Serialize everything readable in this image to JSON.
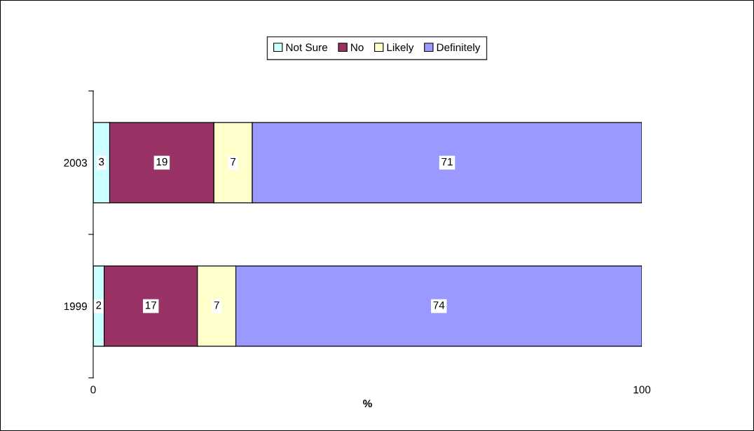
{
  "chart_data": {
    "type": "bar",
    "orientation": "horizontal",
    "stacked": true,
    "categories": [
      "2003",
      "1999"
    ],
    "series": [
      {
        "name": "Not Sure",
        "color": "#ccffff",
        "values": [
          3,
          2
        ]
      },
      {
        "name": "No",
        "color": "#993366",
        "values": [
          19,
          17
        ]
      },
      {
        "name": "Likely",
        "color": "#ffffcc",
        "values": [
          7,
          7
        ]
      },
      {
        "name": "Definitely",
        "color": "#9999ff",
        "values": [
          71,
          74
        ]
      }
    ],
    "xlabel": "%",
    "xlim": [
      0,
      100
    ],
    "xticks": [
      0,
      100
    ],
    "data_labels": true,
    "legend": "top",
    "grid": false
  }
}
